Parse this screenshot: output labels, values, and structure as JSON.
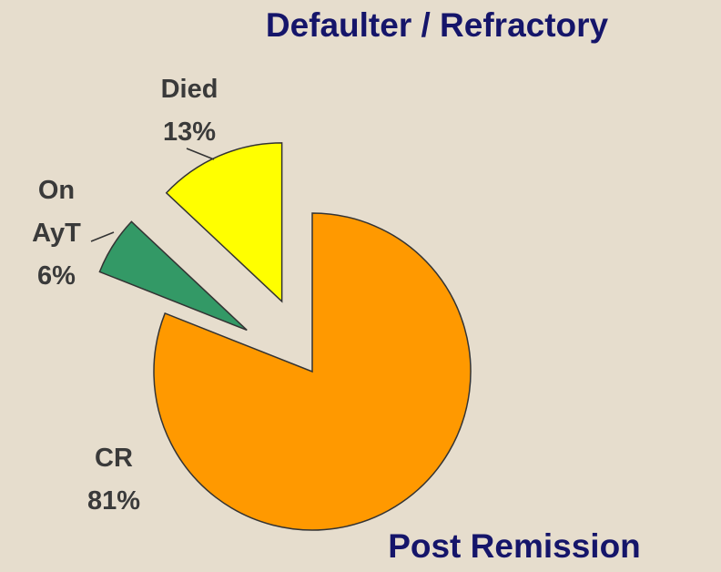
{
  "chart_data": {
    "type": "pie",
    "title": "Defaulter / Refractory",
    "subtitle": "Post Remission",
    "categories": [
      "CR",
      "On AyT",
      "Died"
    ],
    "values": [
      81,
      6,
      13
    ],
    "value_labels": [
      "81%",
      "6%",
      "13%"
    ],
    "colors": [
      "#ff9900",
      "#339966",
      "#ffff00"
    ]
  }
}
